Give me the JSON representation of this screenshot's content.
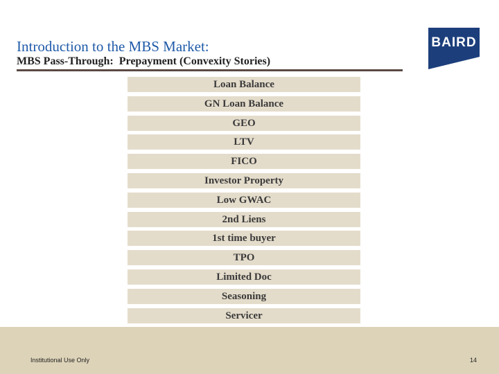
{
  "header": {
    "title": "Introduction to the MBS Market:",
    "subtitle": "MBS Pass-Through:  Prepayment (Convexity Stories)",
    "logo": "BAIRD"
  },
  "list": {
    "items": [
      "Loan Balance",
      "GN Loan Balance",
      "GEO",
      "LTV",
      "FICO",
      "Investor Property",
      "Low GWAC",
      "2nd Liens",
      "1st time buyer",
      "TPO",
      "Limited Doc",
      "Seasoning",
      "Servicer"
    ]
  },
  "footer": {
    "note": "Institutional Use Only",
    "page": "14"
  }
}
